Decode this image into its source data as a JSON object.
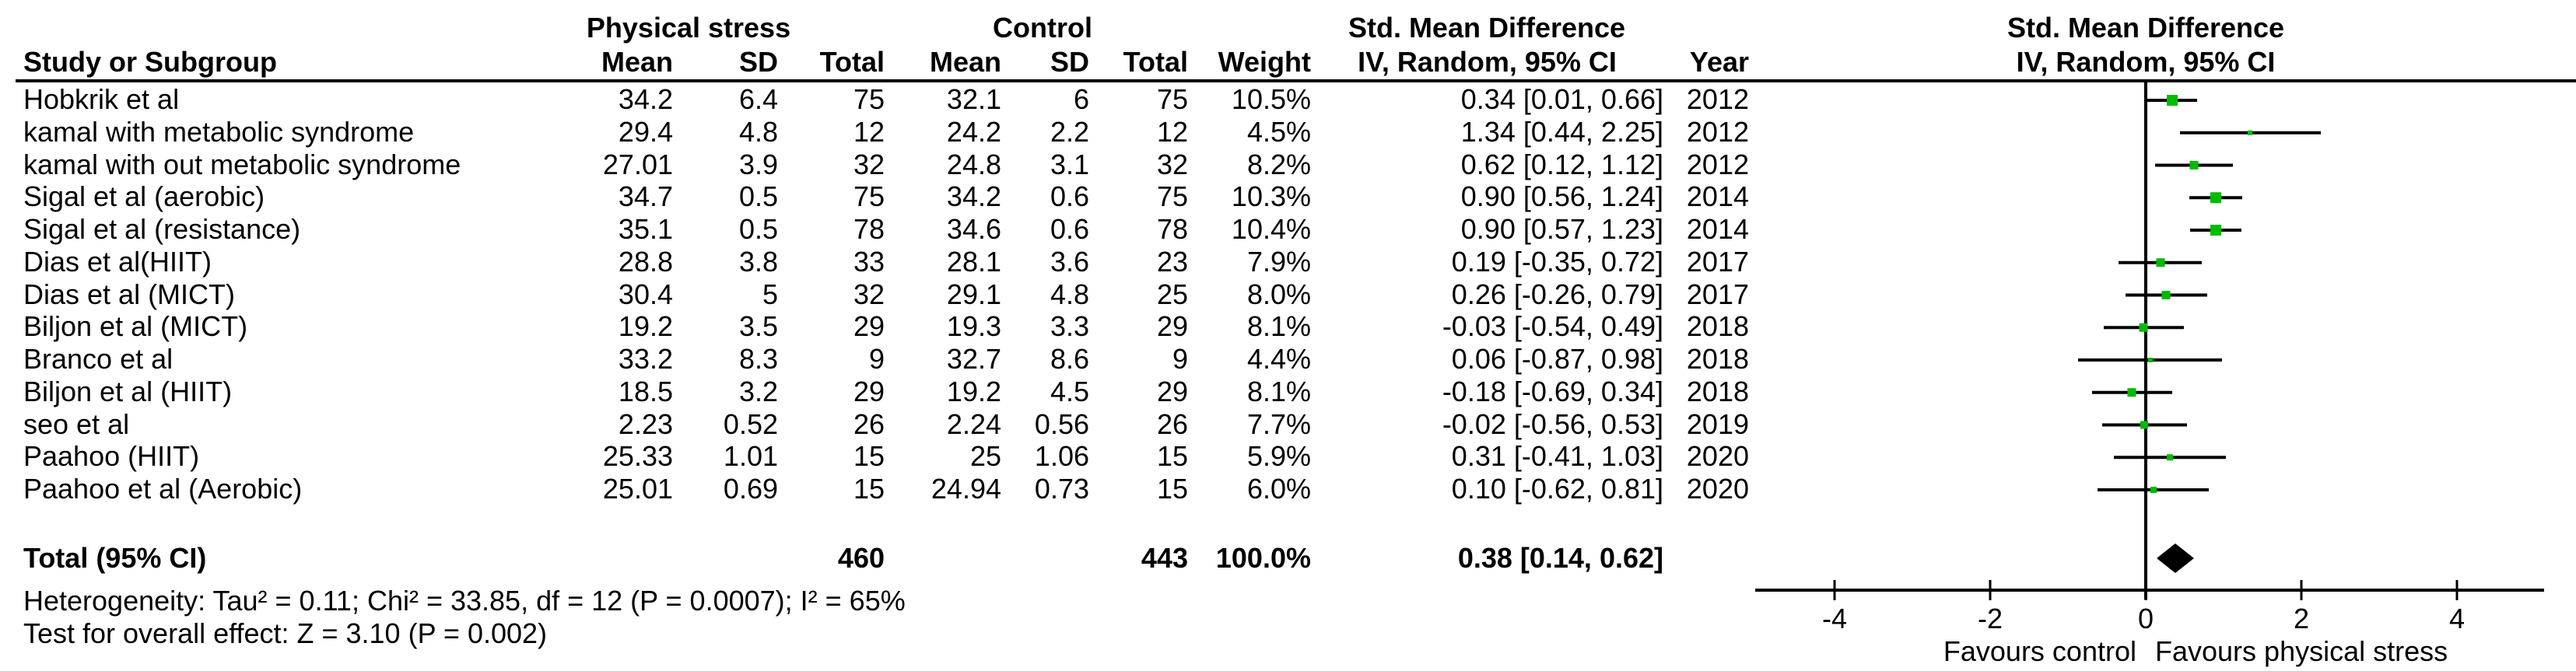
{
  "table": {
    "group1_header": "Physical stress",
    "group2_header": "Control",
    "smd_col_header": "Std. Mean Difference",
    "plot_col_header": "Std. Mean Difference",
    "plot_subheader": "IV, Random, 95% CI",
    "columns": [
      "Study or Subgroup",
      "Mean",
      "SD",
      "Total",
      "Mean",
      "SD",
      "Total",
      "Weight",
      "IV, Random, 95% CI",
      "Year"
    ],
    "heterogeneity": "Heterogeneity: Tau² = 0.11; Chi² = 33.85, df = 12 (P = 0.0007); I² = 65%",
    "overall_effect": "Test for overall effect: Z = 3.10 (P = 0.002)"
  },
  "chart_data": {
    "type": "forest",
    "effect_measure": "Std. Mean Difference",
    "method": "IV, Random, 95% CI",
    "studies": [
      {
        "name": "Hobkrik et al",
        "mean1": "34.2",
        "sd1": "6.4",
        "total1": "75",
        "mean2": "32.1",
        "sd2": "6",
        "total2": "75",
        "weight": "10.5%",
        "weight_pct": 10.5,
        "smd": 0.34,
        "ci_low": 0.01,
        "ci_high": 0.66,
        "ci_text": "0.34 [0.01, 0.66]",
        "year": "2012"
      },
      {
        "name": "kamal with metabolic syndrome",
        "mean1": "29.4",
        "sd1": "4.8",
        "total1": "12",
        "mean2": "24.2",
        "sd2": "2.2",
        "total2": "12",
        "weight": "4.5%",
        "weight_pct": 4.5,
        "smd": 1.34,
        "ci_low": 0.44,
        "ci_high": 2.25,
        "ci_text": "1.34 [0.44, 2.25]",
        "year": "2012"
      },
      {
        "name": "kamal with out metabolic syndrome",
        "mean1": "27.01",
        "sd1": "3.9",
        "total1": "32",
        "mean2": "24.8",
        "sd2": "3.1",
        "total2": "32",
        "weight": "8.2%",
        "weight_pct": 8.2,
        "smd": 0.62,
        "ci_low": 0.12,
        "ci_high": 1.12,
        "ci_text": "0.62 [0.12, 1.12]",
        "year": "2012"
      },
      {
        "name": "Sigal et al (aerobic)",
        "mean1": "34.7",
        "sd1": "0.5",
        "total1": "75",
        "mean2": "34.2",
        "sd2": "0.6",
        "total2": "75",
        "weight": "10.3%",
        "weight_pct": 10.3,
        "smd": 0.9,
        "ci_low": 0.56,
        "ci_high": 1.24,
        "ci_text": "0.90 [0.56, 1.24]",
        "year": "2014"
      },
      {
        "name": "Sigal et al (resistance)",
        "mean1": "35.1",
        "sd1": "0.5",
        "total1": "78",
        "mean2": "34.6",
        "sd2": "0.6",
        "total2": "78",
        "weight": "10.4%",
        "weight_pct": 10.4,
        "smd": 0.9,
        "ci_low": 0.57,
        "ci_high": 1.23,
        "ci_text": "0.90 [0.57, 1.23]",
        "year": "2014"
      },
      {
        "name": "Dias et al(HIIT)",
        "mean1": "28.8",
        "sd1": "3.8",
        "total1": "33",
        "mean2": "28.1",
        "sd2": "3.6",
        "total2": "23",
        "weight": "7.9%",
        "weight_pct": 7.9,
        "smd": 0.19,
        "ci_low": -0.35,
        "ci_high": 0.72,
        "ci_text": "0.19 [-0.35, 0.72]",
        "year": "2017"
      },
      {
        "name": "Dias et al (MICT)",
        "mean1": "30.4",
        "sd1": "5",
        "total1": "32",
        "mean2": "29.1",
        "sd2": "4.8",
        "total2": "25",
        "weight": "8.0%",
        "weight_pct": 8.0,
        "smd": 0.26,
        "ci_low": -0.26,
        "ci_high": 0.79,
        "ci_text": "0.26 [-0.26, 0.79]",
        "year": "2017"
      },
      {
        "name": "Biljon et al (MICT)",
        "mean1": "19.2",
        "sd1": "3.5",
        "total1": "29",
        "mean2": "19.3",
        "sd2": "3.3",
        "total2": "29",
        "weight": "8.1%",
        "weight_pct": 8.1,
        "smd": -0.03,
        "ci_low": -0.54,
        "ci_high": 0.49,
        "ci_text": "-0.03 [-0.54, 0.49]",
        "year": "2018"
      },
      {
        "name": "Branco et al",
        "mean1": "33.2",
        "sd1": "8.3",
        "total1": "9",
        "mean2": "32.7",
        "sd2": "8.6",
        "total2": "9",
        "weight": "4.4%",
        "weight_pct": 4.4,
        "smd": 0.06,
        "ci_low": -0.87,
        "ci_high": 0.98,
        "ci_text": "0.06 [-0.87, 0.98]",
        "year": "2018"
      },
      {
        "name": "Biljon et al (HIIT)",
        "mean1": "18.5",
        "sd1": "3.2",
        "total1": "29",
        "mean2": "19.2",
        "sd2": "4.5",
        "total2": "29",
        "weight": "8.1%",
        "weight_pct": 8.1,
        "smd": -0.18,
        "ci_low": -0.69,
        "ci_high": 0.34,
        "ci_text": "-0.18 [-0.69, 0.34]",
        "year": "2018"
      },
      {
        "name": "seo et al",
        "mean1": "2.23",
        "sd1": "0.52",
        "total1": "26",
        "mean2": "2.24",
        "sd2": "0.56",
        "total2": "26",
        "weight": "7.7%",
        "weight_pct": 7.7,
        "smd": -0.02,
        "ci_low": -0.56,
        "ci_high": 0.53,
        "ci_text": "-0.02 [-0.56, 0.53]",
        "year": "2019"
      },
      {
        "name": "Paahoo (HIIT)",
        "mean1": "25.33",
        "sd1": "1.01",
        "total1": "15",
        "mean2": "25",
        "sd2": "1.06",
        "total2": "15",
        "weight": "5.9%",
        "weight_pct": 5.9,
        "smd": 0.31,
        "ci_low": -0.41,
        "ci_high": 1.03,
        "ci_text": "0.31 [-0.41, 1.03]",
        "year": "2020"
      },
      {
        "name": "Paahoo et al (Aerobic)",
        "mean1": "25.01",
        "sd1": "0.69",
        "total1": "15",
        "mean2": "24.94",
        "sd2": "0.73",
        "total2": "15",
        "weight": "6.0%",
        "weight_pct": 6.0,
        "smd": 0.1,
        "ci_low": -0.62,
        "ci_high": 0.81,
        "ci_text": "0.10 [-0.62, 0.81]",
        "year": "2020"
      }
    ],
    "total": {
      "label": "Total (95% CI)",
      "total1": "460",
      "total2": "443",
      "weight": "100.0%",
      "smd": 0.38,
      "ci_low": 0.14,
      "ci_high": 0.62,
      "ci_text": "0.38 [0.14, 0.62]"
    },
    "axis": {
      "min": -5,
      "max": 5.1,
      "ticks": [
        -4,
        -2,
        0,
        2,
        4
      ],
      "tick_labels": [
        "-4",
        "-2",
        "0",
        "2",
        "4"
      ],
      "favours_left": "Favours control",
      "favours_right": "Favours physical stress"
    },
    "marker_color": "#00BB00",
    "line_color": "#000000",
    "background": "#FFFFFF"
  }
}
